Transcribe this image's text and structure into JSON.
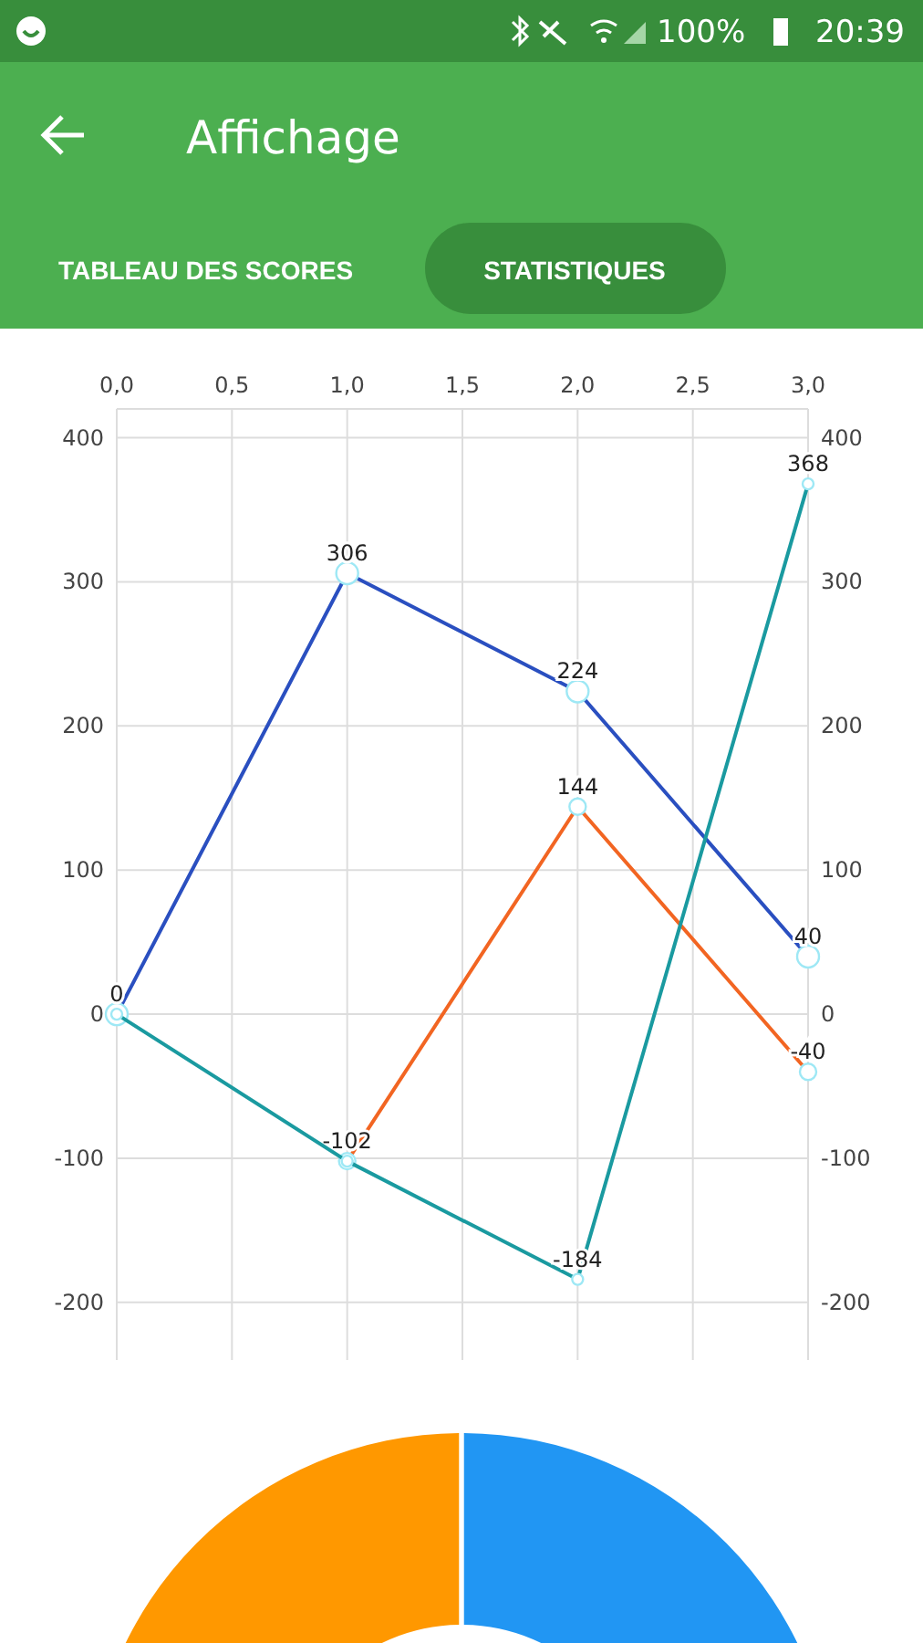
{
  "chart_data": [
    {
      "type": "line",
      "title": "Affichage",
      "annotations": [
        "TABLEAU DES SCORES",
        "STATISTIQUES",
        "100%",
        "20:39"
      ],
      "x": [
        0,
        1,
        2,
        3
      ],
      "series": [
        {
          "color": "#2a4fc0",
          "values": [
            0,
            306,
            224,
            40
          ],
          "value_labels": [
            "0",
            "306",
            "224",
            "40"
          ]
        },
        {
          "color": "#f26522",
          "x": [
            1,
            2,
            3
          ],
          "values": [
            -102,
            144,
            -40
          ],
          "value_labels": [
            "-102",
            "144",
            "-40"
          ]
        },
        {
          "color": "#1a9aa0",
          "values": [
            0,
            -102,
            -184,
            368
          ],
          "value_labels": [
            null,
            null,
            "-184",
            "368"
          ]
        }
      ],
      "xlim": [
        0,
        3
      ],
      "xticks": [
        {
          "value": 0,
          "label": "0,0"
        },
        {
          "value": 0.5,
          "label": "0,5"
        },
        {
          "value": 1,
          "label": "1,0"
        },
        {
          "value": 1.5,
          "label": "1,5"
        },
        {
          "value": 2,
          "label": "2,0"
        },
        {
          "value": 2.5,
          "label": "2,5"
        },
        {
          "value": 3,
          "label": "3,0"
        }
      ],
      "ylim": [
        -240,
        420
      ],
      "yticks": [
        -200,
        -100,
        0,
        100,
        200,
        300,
        400
      ],
      "y2lim": [
        -240,
        420
      ],
      "y2ticks": [
        -200,
        -100,
        0,
        100,
        200,
        300,
        400
      ],
      "grid": true,
      "marker": "circle",
      "line_style": "solid"
    },
    {
      "type": "donut",
      "categories": [
        null,
        null
      ],
      "values": [
        50,
        50
      ],
      "colors": [
        "#2196f3",
        "#ff9800"
      ]
    }
  ]
}
